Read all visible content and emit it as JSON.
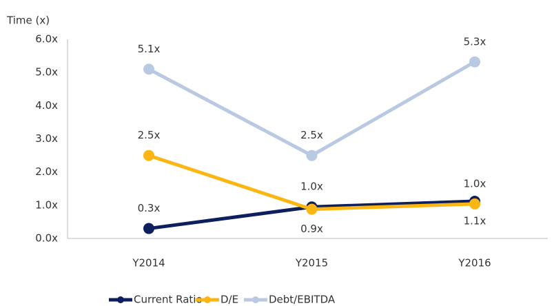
{
  "chart_data": {
    "type": "line",
    "y_axis_label": "Time (x)",
    "categories": [
      "Y2014",
      "Y2015",
      "Y2016"
    ],
    "ylim": [
      0,
      6
    ],
    "yticks": [
      {
        "value": 0,
        "label": "0.0x"
      },
      {
        "value": 1,
        "label": "1.0x"
      },
      {
        "value": 2,
        "label": "2.0x"
      },
      {
        "value": 3,
        "label": "3.0x"
      },
      {
        "value": 4,
        "label": "4.0x"
      },
      {
        "value": 5,
        "label": "5.0x"
      },
      {
        "value": 6,
        "label": "6.0x"
      }
    ],
    "grid": false,
    "legend": "bottom",
    "series": [
      {
        "name": "Current Ratio",
        "color": "#0d1f5c",
        "values": [
          0.3,
          0.95,
          1.12
        ],
        "value_labels": [
          "0.3x",
          "1.0x",
          "1.1x"
        ]
      },
      {
        "name": "D/E",
        "color": "#fbb614",
        "values": [
          2.5,
          0.88,
          1.04
        ],
        "value_labels": [
          "2.5x",
          "0.9x",
          "1.0x"
        ]
      },
      {
        "name": "Debt/EBITDA",
        "color": "#b8c9e1",
        "values": [
          5.1,
          2.5,
          5.32
        ],
        "value_labels": [
          "5.1x",
          "2.5x",
          "5.3x"
        ]
      }
    ]
  }
}
